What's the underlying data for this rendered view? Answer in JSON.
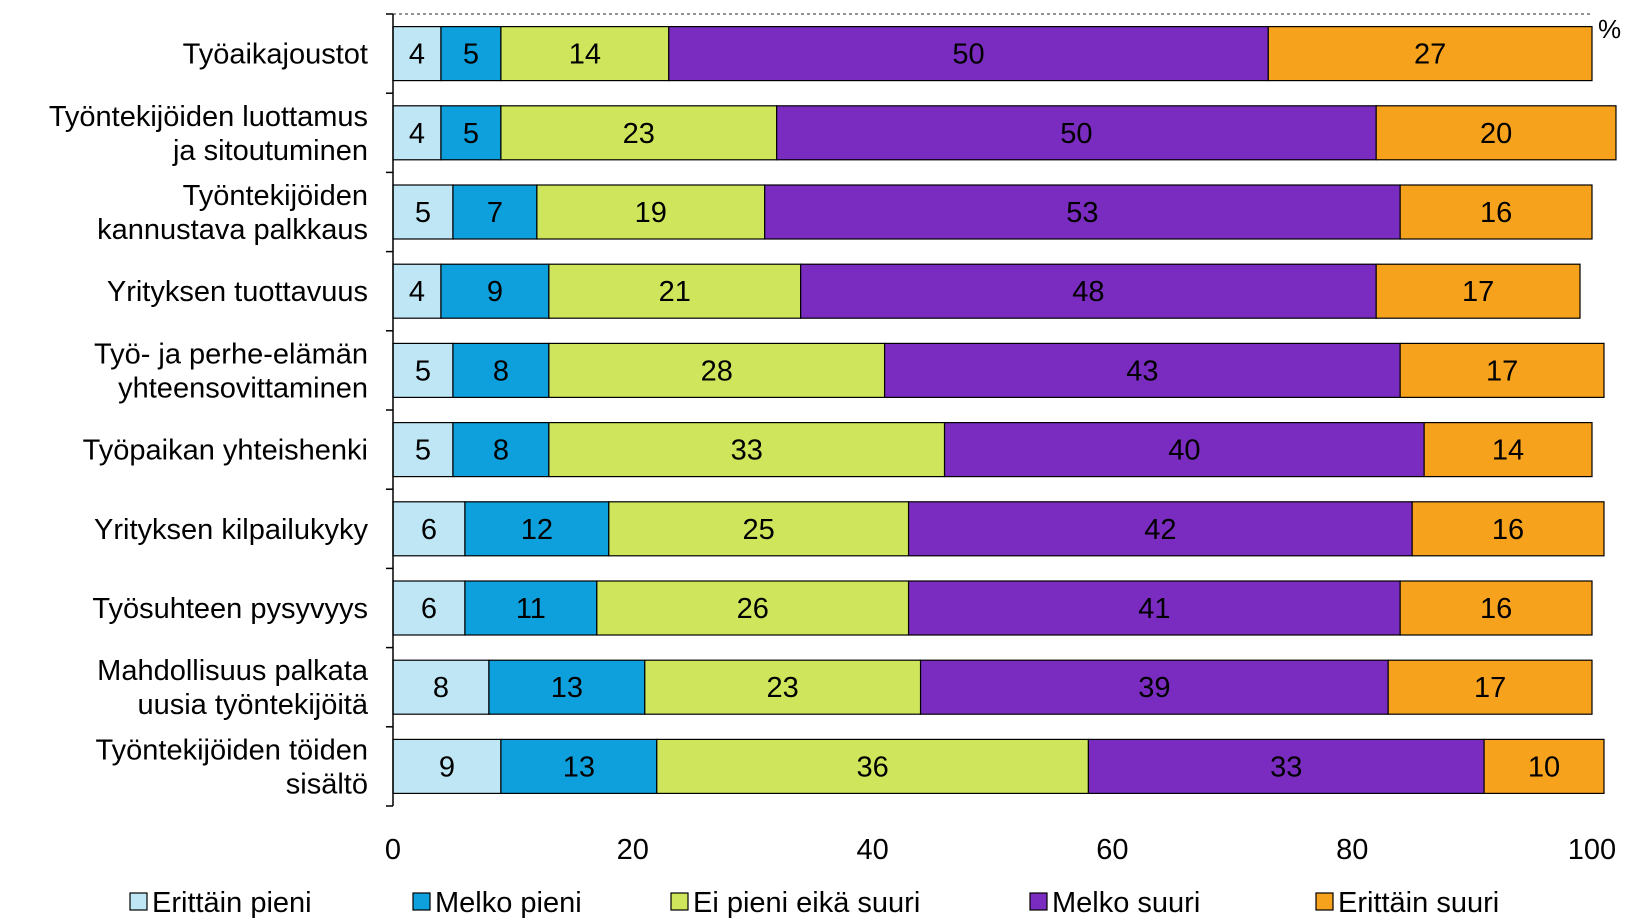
{
  "chart_data": {
    "type": "bar",
    "orientation": "horizontal",
    "stacked": true,
    "unit_label": "%",
    "categories": [
      [
        "Työaikajoustot"
      ],
      [
        "Työntekijöiden luottamus",
        "ja sitoutuminen"
      ],
      [
        "Työntekijöiden",
        "kannustava palkkaus"
      ],
      [
        "Yrityksen tuottavuus"
      ],
      [
        "Työ- ja perhe-elämän",
        "yhteensovittaminen"
      ],
      [
        "Työpaikan yhteishenki"
      ],
      [
        "Yrityksen kilpailukyky"
      ],
      [
        "Työsuhteen pysyvyys"
      ],
      [
        "Mahdollisuus palkata",
        "uusia työntekijöitä"
      ],
      [
        "Työntekijöiden töiden",
        "sisältö"
      ]
    ],
    "series": [
      {
        "name": "Erittäin pieni",
        "color": "#bfe6f5",
        "values": [
          4,
          4,
          5,
          4,
          5,
          5,
          6,
          6,
          8,
          9
        ]
      },
      {
        "name": "Melko pieni",
        "color": "#0ea0dc",
        "values": [
          5,
          5,
          7,
          9,
          8,
          8,
          12,
          11,
          13,
          13
        ]
      },
      {
        "name": "Ei pieni eikä suuri",
        "color": "#cfe65c",
        "values": [
          14,
          23,
          19,
          21,
          28,
          33,
          25,
          26,
          23,
          36
        ]
      },
      {
        "name": "Melko suuri",
        "color": "#7b2cc0",
        "values": [
          50,
          50,
          53,
          48,
          43,
          40,
          42,
          41,
          39,
          33
        ]
      },
      {
        "name": "Erittäin suuri",
        "color": "#f7a21c",
        "values": [
          27,
          20,
          16,
          17,
          17,
          14,
          16,
          16,
          17,
          10
        ]
      }
    ],
    "xlim": [
      0,
      100
    ],
    "xticks": [
      0,
      20,
      40,
      60,
      80,
      100
    ],
    "grid": false,
    "legend_position": "bottom"
  }
}
